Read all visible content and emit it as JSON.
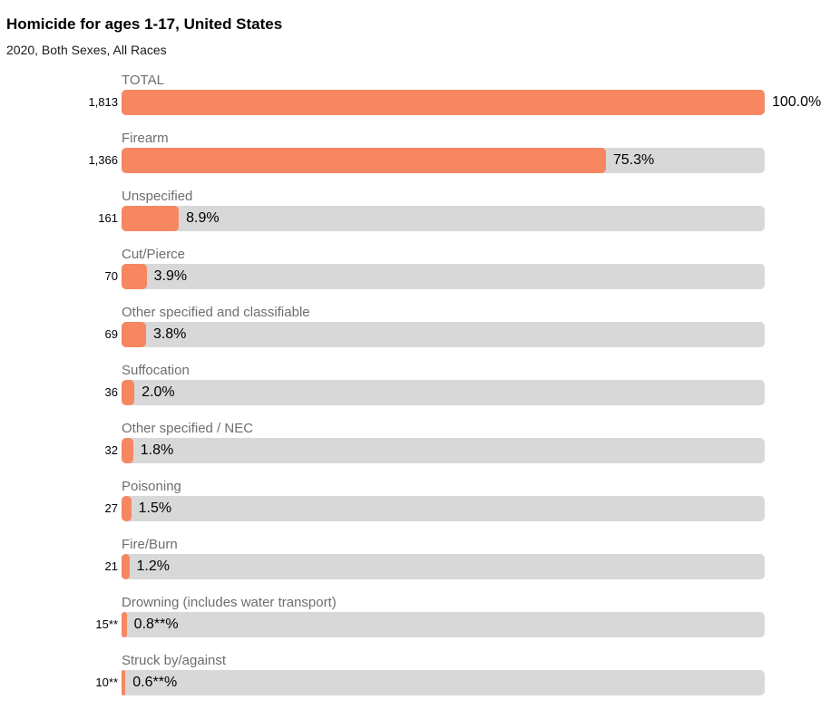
{
  "page": {
    "title": "Homicide for ages 1-17, United States",
    "subtitle": "2020, Both Sexes, All Races"
  },
  "chart_data": {
    "type": "bar",
    "orientation": "horizontal",
    "title": "Homicide for ages 1-17, United States",
    "subtitle": "2020, Both Sexes, All Races",
    "xlabel": "",
    "ylabel": "",
    "xlim": [
      0,
      100
    ],
    "unit": "percent of total",
    "grid": false,
    "legend": false,
    "colors": {
      "bar_fill": "#f68761",
      "bar_track": "#d8d8d8",
      "category_label": "#6e6e6e",
      "value_text": "#000000"
    },
    "footnote_marker": "**",
    "rows": [
      {
        "label": "TOTAL",
        "count": "1,813",
        "pct": 100.0,
        "pct_label": "100.0%"
      },
      {
        "label": "Firearm",
        "count": "1,366",
        "pct": 75.3,
        "pct_label": "75.3%"
      },
      {
        "label": "Unspecified",
        "count": "161",
        "pct": 8.9,
        "pct_label": "8.9%"
      },
      {
        "label": "Cut/Pierce",
        "count": "70",
        "pct": 3.9,
        "pct_label": "3.9%"
      },
      {
        "label": "Other specified and classifiable",
        "count": "69",
        "pct": 3.8,
        "pct_label": "3.8%"
      },
      {
        "label": "Suffocation",
        "count": "36",
        "pct": 2.0,
        "pct_label": "2.0%"
      },
      {
        "label": "Other specified / NEC",
        "count": "32",
        "pct": 1.8,
        "pct_label": "1.8%"
      },
      {
        "label": "Poisoning",
        "count": "27",
        "pct": 1.5,
        "pct_label": "1.5%"
      },
      {
        "label": "Fire/Burn",
        "count": "21",
        "pct": 1.2,
        "pct_label": "1.2%"
      },
      {
        "label": "Drowning (includes water transport)",
        "count": "15**",
        "pct": 0.8,
        "pct_label": "0.8**%"
      },
      {
        "label": "Struck by/against",
        "count": "10**",
        "pct": 0.6,
        "pct_label": "0.6**%"
      }
    ]
  }
}
